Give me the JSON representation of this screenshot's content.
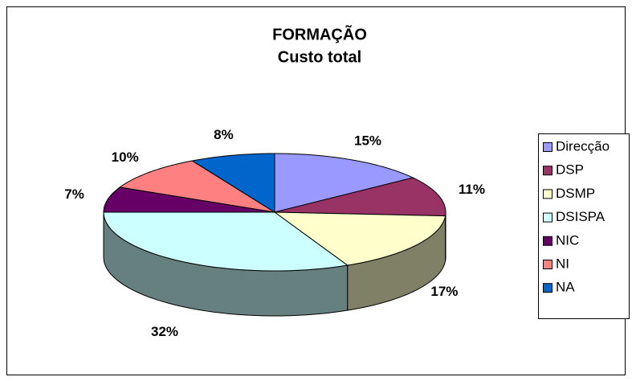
{
  "chart_data": {
    "type": "pie3d",
    "title": "FORMAÇÃO",
    "subtitle": "Custo total",
    "categories": [
      "Direcção",
      "DSP",
      "DSMP",
      "DSISPA",
      "NIC",
      "NI",
      "NA"
    ],
    "values": [
      15,
      11,
      17,
      32,
      7,
      10,
      8
    ],
    "value_labels": [
      "15%",
      "11%",
      "17%",
      "32%",
      "7%",
      "10%",
      "8%"
    ],
    "colors": [
      "#9999ff",
      "#993366",
      "#ffffcc",
      "#ccffff",
      "#660066",
      "#ff8080",
      "#0066cc"
    ],
    "legend": "right"
  }
}
